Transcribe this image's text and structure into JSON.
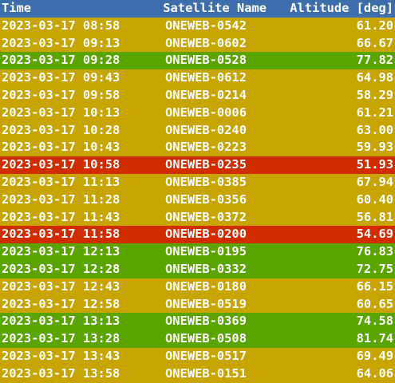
{
  "header": {
    "time_label": "Time",
    "name_label": "Satellite Name",
    "alt_label": "Altitude [deg]"
  },
  "colors": {
    "header_bg": "#3e6dac",
    "yellow": "#c8a400",
    "green": "#5aa400",
    "red": "#d12c00"
  },
  "rows": [
    {
      "time": "2023-03-17 08:58",
      "name": "ONEWEB-0542",
      "alt": "61.20",
      "status": "yellow"
    },
    {
      "time": "2023-03-17 09:13",
      "name": "ONEWEB-0602",
      "alt": "66.67",
      "status": "yellow"
    },
    {
      "time": "2023-03-17 09:28",
      "name": "ONEWEB-0528",
      "alt": "77.82",
      "status": "green"
    },
    {
      "time": "2023-03-17 09:43",
      "name": "ONEWEB-0612",
      "alt": "64.98",
      "status": "yellow"
    },
    {
      "time": "2023-03-17 09:58",
      "name": "ONEWEB-0214",
      "alt": "58.29",
      "status": "yellow"
    },
    {
      "time": "2023-03-17 10:13",
      "name": "ONEWEB-0006",
      "alt": "61.21",
      "status": "yellow"
    },
    {
      "time": "2023-03-17 10:28",
      "name": "ONEWEB-0240",
      "alt": "63.00",
      "status": "yellow"
    },
    {
      "time": "2023-03-17 10:43",
      "name": "ONEWEB-0223",
      "alt": "59.93",
      "status": "yellow"
    },
    {
      "time": "2023-03-17 10:58",
      "name": "ONEWEB-0235",
      "alt": "51.93",
      "status": "red"
    },
    {
      "time": "2023-03-17 11:13",
      "name": "ONEWEB-0385",
      "alt": "67.94",
      "status": "yellow"
    },
    {
      "time": "2023-03-17 11:28",
      "name": "ONEWEB-0356",
      "alt": "60.40",
      "status": "yellow"
    },
    {
      "time": "2023-03-17 11:43",
      "name": "ONEWEB-0372",
      "alt": "56.81",
      "status": "yellow"
    },
    {
      "time": "2023-03-17 11:58",
      "name": "ONEWEB-0200",
      "alt": "54.69",
      "status": "red"
    },
    {
      "time": "2023-03-17 12:13",
      "name": "ONEWEB-0195",
      "alt": "76.83",
      "status": "green"
    },
    {
      "time": "2023-03-17 12:28",
      "name": "ONEWEB-0332",
      "alt": "72.75",
      "status": "green"
    },
    {
      "time": "2023-03-17 12:43",
      "name": "ONEWEB-0180",
      "alt": "66.15",
      "status": "yellow"
    },
    {
      "time": "2023-03-17 12:58",
      "name": "ONEWEB-0519",
      "alt": "60.65",
      "status": "yellow"
    },
    {
      "time": "2023-03-17 13:13",
      "name": "ONEWEB-0369",
      "alt": "74.58",
      "status": "green"
    },
    {
      "time": "2023-03-17 13:28",
      "name": "ONEWEB-0508",
      "alt": "81.74",
      "status": "green"
    },
    {
      "time": "2023-03-17 13:43",
      "name": "ONEWEB-0517",
      "alt": "69.49",
      "status": "yellow"
    },
    {
      "time": "2023-03-17 13:58",
      "name": "ONEWEB-0151",
      "alt": "64.06",
      "status": "yellow"
    }
  ]
}
